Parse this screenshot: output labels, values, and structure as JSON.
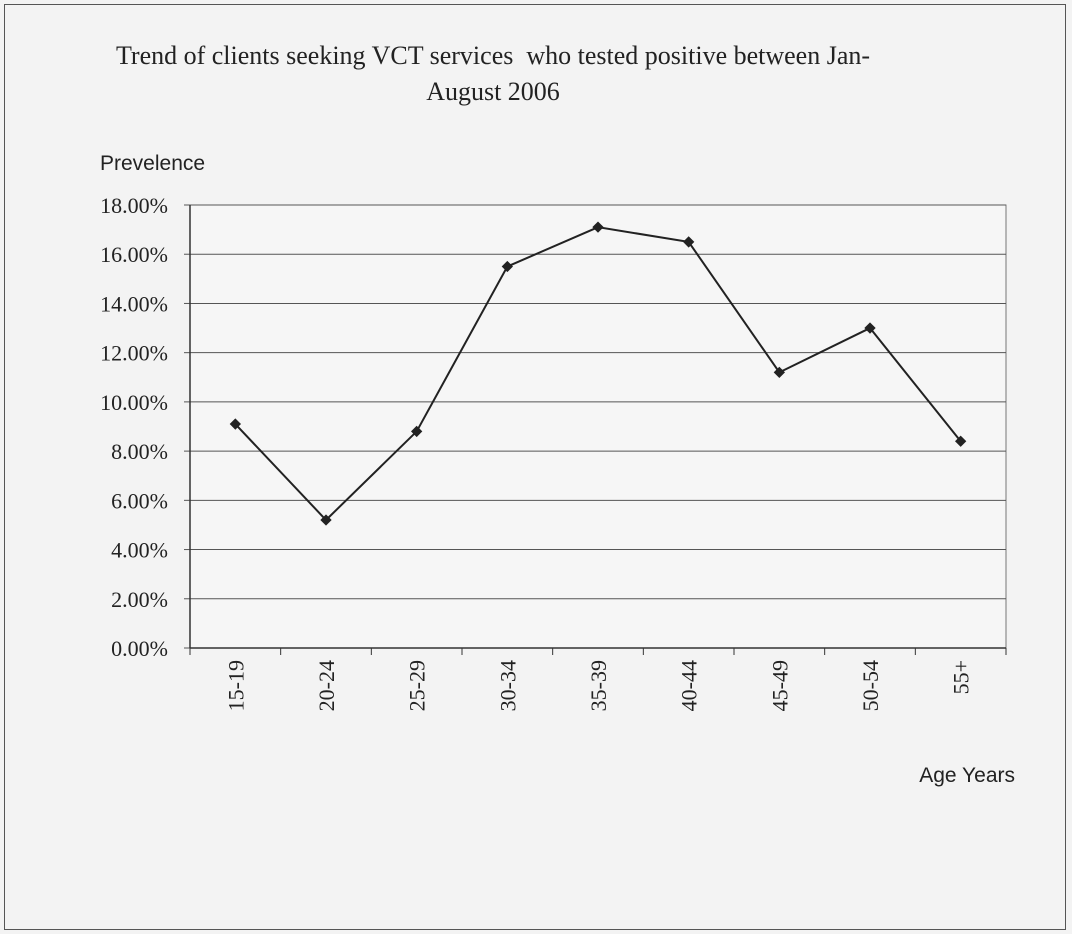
{
  "chart_data": {
    "type": "line",
    "title": "Trend of clients seeking VCT services  who tested positive between Jan-August 2006",
    "y_label": "Prevelence",
    "x_label": "Age Years",
    "categories": [
      "15-19",
      "20-24",
      "25-29",
      "30-34",
      "35-39",
      "40-44",
      "45-49",
      "50-54",
      "55+"
    ],
    "values": [
      9.1,
      5.2,
      8.8,
      15.5,
      17.1,
      16.5,
      11.2,
      13.0,
      8.4
    ],
    "color": "#222222",
    "ylim": [
      0,
      18
    ],
    "yticks": [
      {
        "value": 0,
        "label": "0.00%"
      },
      {
        "value": 2,
        "label": "2.00%"
      },
      {
        "value": 4,
        "label": "4.00%"
      },
      {
        "value": 6,
        "label": "6.00%"
      },
      {
        "value": 8,
        "label": "8.00%"
      },
      {
        "value": 10,
        "label": "10.00%"
      },
      {
        "value": 12,
        "label": "12.00%"
      },
      {
        "value": 14,
        "label": "14.00%"
      },
      {
        "value": 16,
        "label": "16.00%"
      },
      {
        "value": 18,
        "label": "18.00%"
      }
    ],
    "grid": true
  }
}
